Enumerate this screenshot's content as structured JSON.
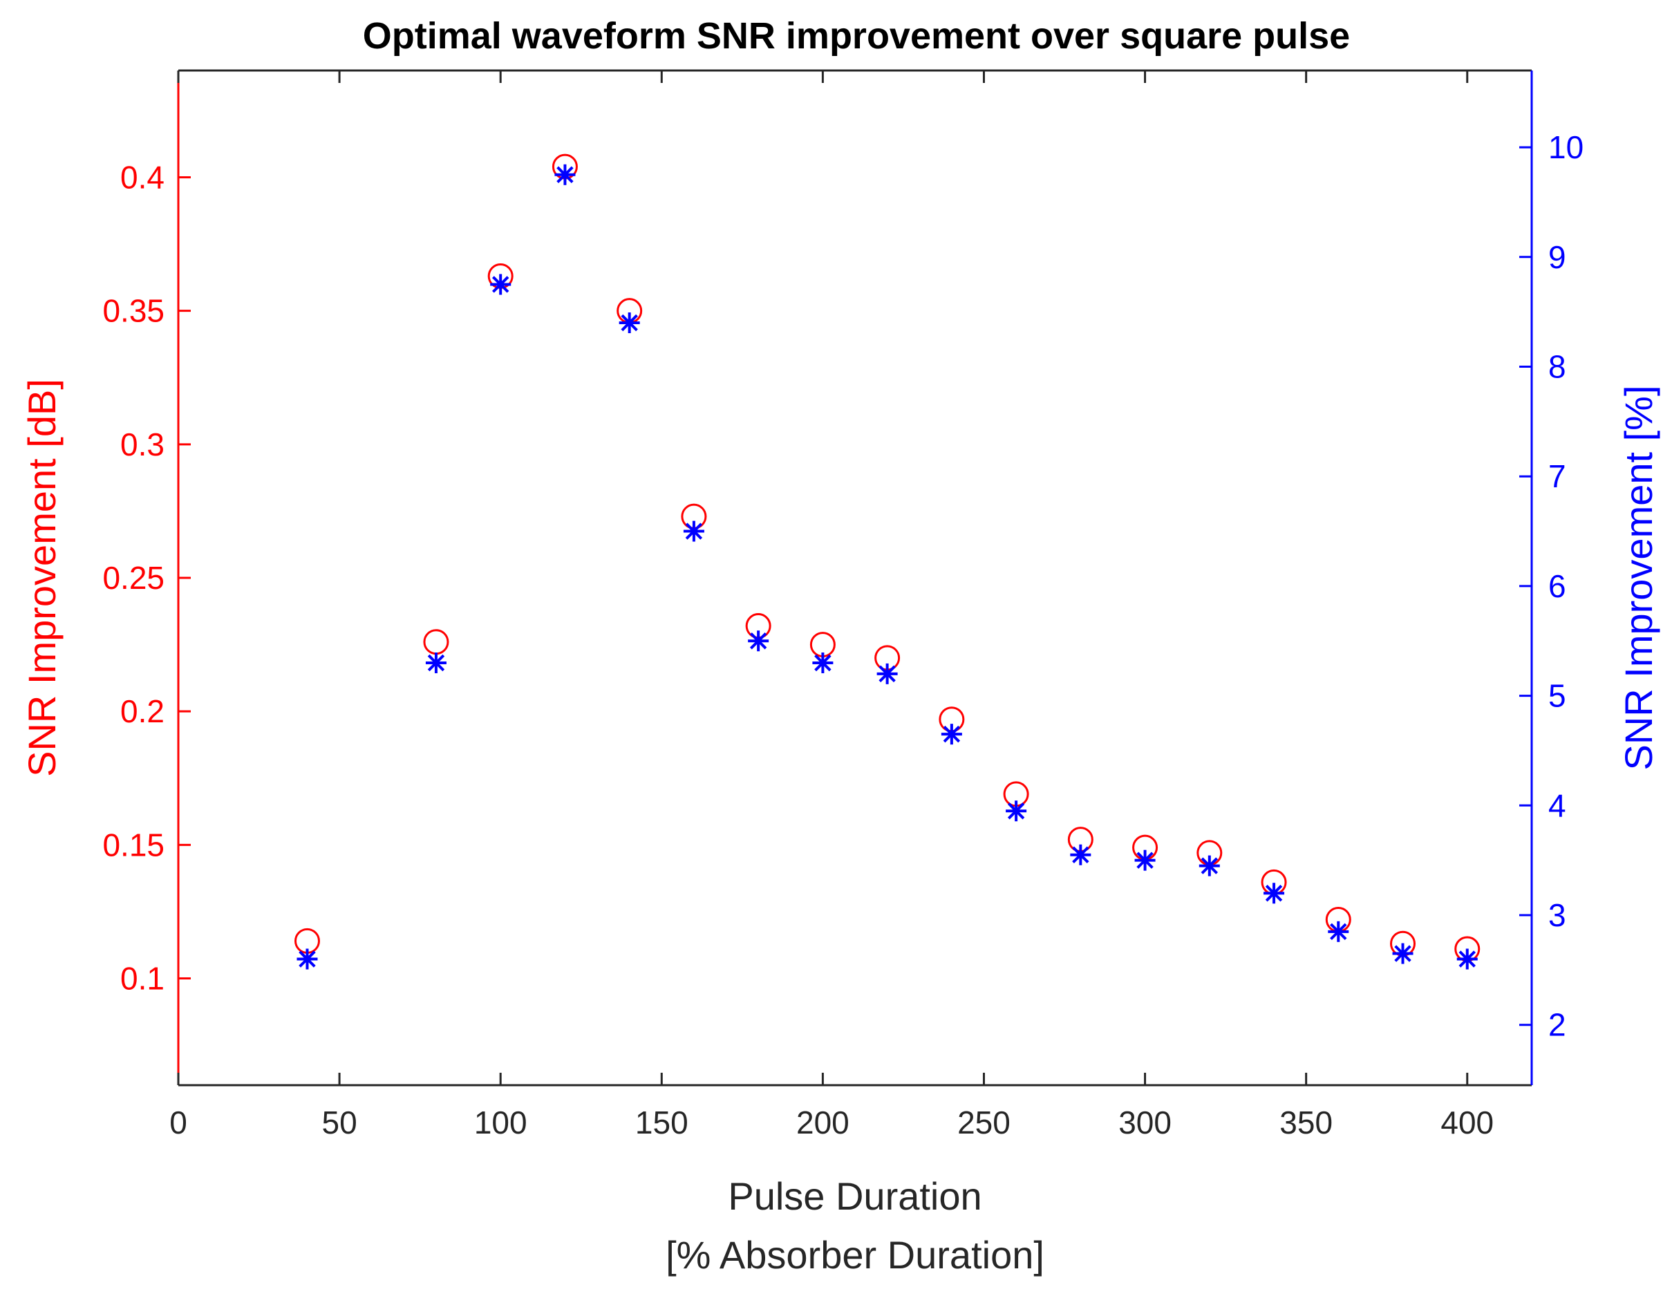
{
  "chart_data": {
    "type": "scatter",
    "title": "Optimal waveform SNR improvement over square pulse",
    "xlabel": "Pulse Duration",
    "xlabel2": "[% Absorber Duration]",
    "ylabel_left": "SNR Improvement [dB]",
    "ylabel_right": "SNR Improvement [%]",
    "xlim": [
      0,
      420
    ],
    "ylim_left": [
      0.06,
      0.44
    ],
    "ylim_right": [
      1.45,
      10.7
    ],
    "xticks": [
      "0",
      "50",
      "100",
      "150",
      "200",
      "250",
      "300",
      "350",
      "400"
    ],
    "yticks_left": [
      "0.1",
      "0.15",
      "0.2",
      "0.25",
      "0.3",
      "0.35",
      "0.4"
    ],
    "yticks_right": [
      "2",
      "3",
      "4",
      "5",
      "6",
      "7",
      "8",
      "9",
      "10"
    ],
    "x": [
      40,
      80,
      100,
      120,
      140,
      160,
      180,
      200,
      220,
      240,
      260,
      280,
      300,
      320,
      340,
      360,
      380,
      400
    ],
    "series": [
      {
        "name": "SNR Improvement [dB]",
        "axis": "left",
        "marker": "circle",
        "color": "#ff0000",
        "values": [
          0.114,
          0.226,
          0.363,
          0.404,
          0.35,
          0.273,
          0.232,
          0.225,
          0.22,
          0.197,
          0.169,
          0.152,
          0.149,
          0.147,
          0.136,
          0.122,
          0.113,
          0.111
        ]
      },
      {
        "name": "SNR Improvement [%]",
        "axis": "right",
        "marker": "asterisk",
        "color": "#0000ff",
        "values": [
          2.6,
          5.3,
          8.75,
          9.75,
          8.4,
          6.5,
          5.5,
          5.3,
          5.2,
          4.65,
          3.95,
          3.55,
          3.5,
          3.45,
          3.2,
          2.85,
          2.65,
          2.6
        ]
      }
    ],
    "grid": false,
    "legend": "none"
  }
}
